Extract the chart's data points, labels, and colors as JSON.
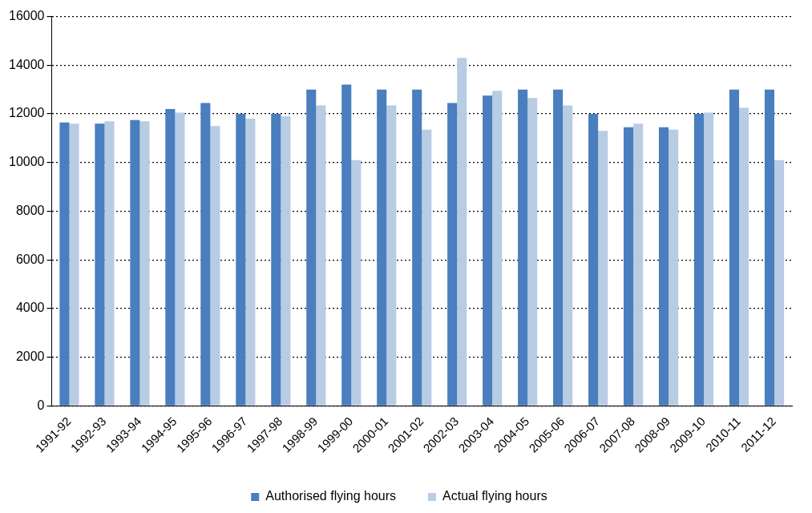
{
  "chart_data": {
    "type": "bar",
    "categories": [
      "1991-92",
      "1992-93",
      "1993-94",
      "1994-95",
      "1995-96",
      "1996-97",
      "1997-98",
      "1998-99",
      "1999-00",
      "2000-01",
      "2001-02",
      "2002-03",
      "2003-04",
      "2004-05",
      "2005-06",
      "2006-07",
      "2007-08",
      "2008-09",
      "2009-10",
      "2010-11",
      "2011-12"
    ],
    "series": [
      {
        "name": "Authorised flying hours",
        "color": "#4a7ebf",
        "values": [
          11650,
          11600,
          11750,
          12200,
          12450,
          12000,
          12000,
          13000,
          13200,
          13000,
          13000,
          12450,
          12750,
          13000,
          13000,
          12000,
          11450,
          11450,
          12000,
          13000,
          13000
        ]
      },
      {
        "name": "Actual flying hours",
        "color": "#b8cce4",
        "values": [
          11600,
          11700,
          11700,
          12050,
          11500,
          11800,
          11900,
          12350,
          10100,
          12350,
          11350,
          14300,
          12950,
          12650,
          12350,
          11300,
          11600,
          11350,
          12050,
          12250,
          10100
        ]
      }
    ],
    "ylim": [
      0,
      16000
    ],
    "yticks": [
      0,
      2000,
      4000,
      6000,
      8000,
      10000,
      12000,
      14000,
      16000
    ],
    "grid": "y",
    "legend": "bottom"
  }
}
